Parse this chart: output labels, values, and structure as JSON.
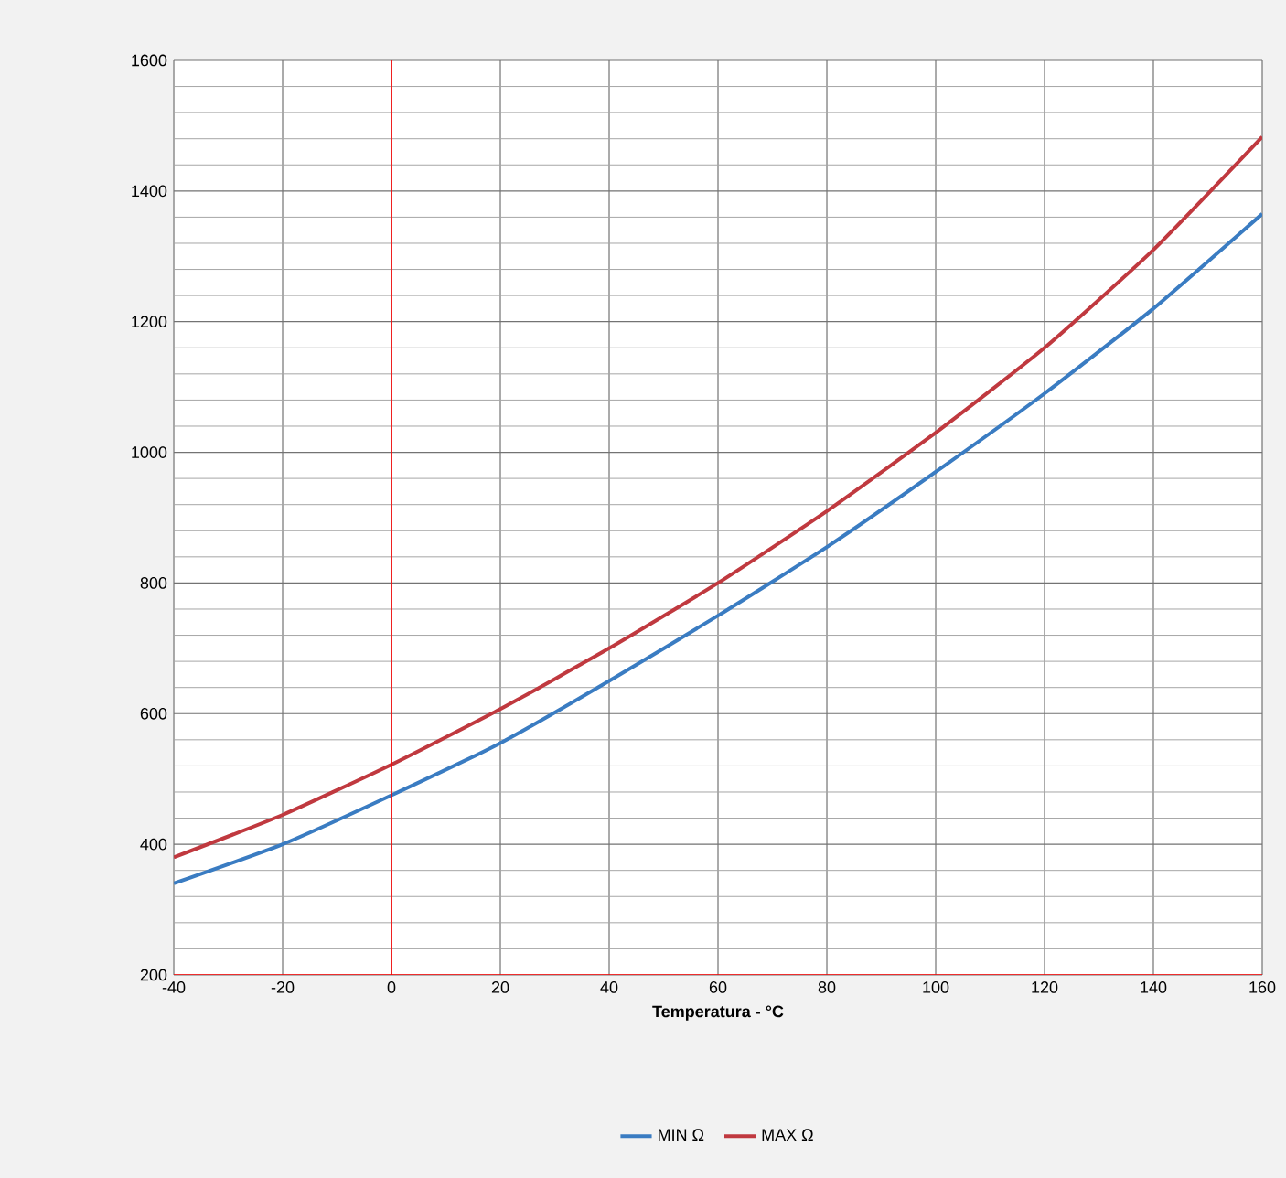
{
  "chart_data": {
    "type": "line",
    "xlabel": "Temperatura - °C",
    "x": [
      -40,
      -20,
      0,
      20,
      40,
      60,
      80,
      100,
      120,
      140,
      160
    ],
    "series": [
      {
        "name": "MIN Ω",
        "color": "#3a7cc2",
        "values": [
          340,
          400,
          475,
          555,
          650,
          750,
          855,
          970,
          1090,
          1220,
          1365
        ]
      },
      {
        "name": "MAX Ω",
        "color": "#c0393f",
        "values": [
          380,
          445,
          522,
          607,
          700,
          800,
          910,
          1030,
          1160,
          1310,
          1483
        ]
      }
    ],
    "xlim": [
      -40,
      160
    ],
    "xticks": [
      -40,
      -20,
      0,
      20,
      40,
      60,
      80,
      100,
      120,
      140,
      160
    ],
    "ylim": [
      200,
      1600
    ],
    "yticks": [
      200,
      400,
      600,
      800,
      1000,
      1200,
      1400,
      1600
    ],
    "ref_lines": [
      {
        "axis": "x",
        "value": 0,
        "color": "#ff0000"
      }
    ],
    "grid": true,
    "legend": "bottom",
    "marker": "none",
    "line_style": "solid"
  }
}
